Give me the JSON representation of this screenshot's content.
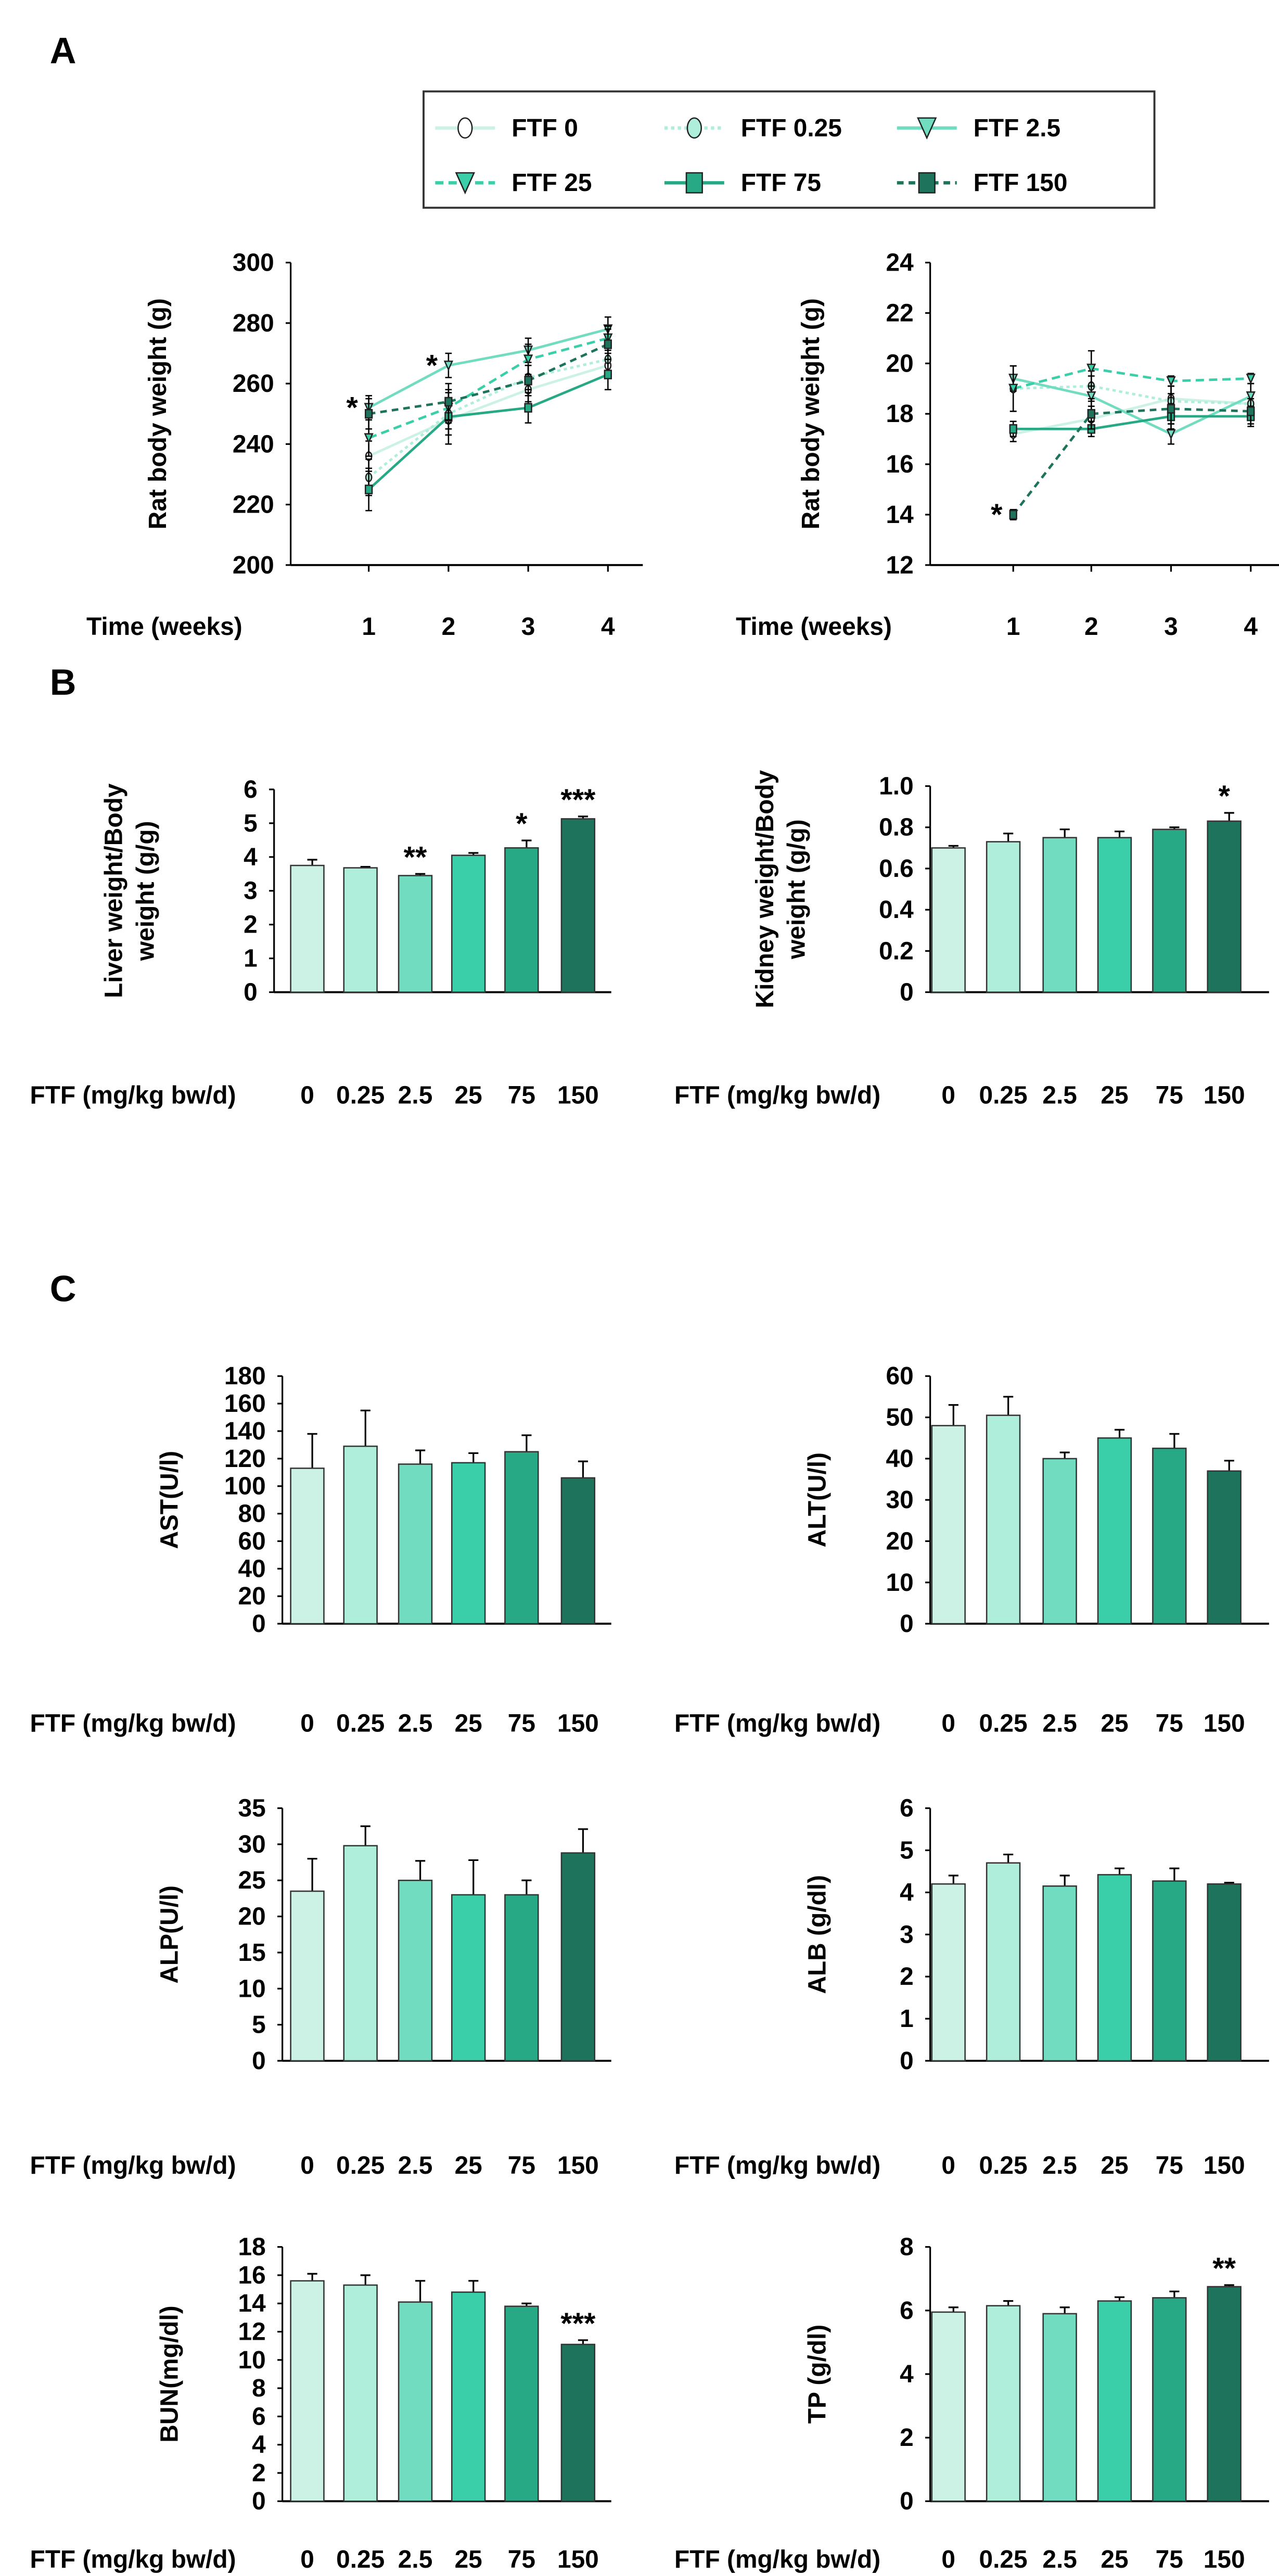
{
  "panels": {
    "a": "A",
    "b": "B",
    "c": "C"
  },
  "colors": [
    "#ccf2e6",
    "#aeeedb",
    "#72dcc0",
    "#3acfa8",
    "#28a986",
    "#1e735c"
  ],
  "legend": [
    {
      "label": "FTF 0",
      "marker": "circle-open",
      "line": "solid"
    },
    {
      "label": "FTF 0.25",
      "marker": "circle",
      "line": "dotted"
    },
    {
      "label": "FTF 2.5",
      "marker": "triangle-down",
      "line": "solid"
    },
    {
      "label": "FTF 25",
      "marker": "triangle-down",
      "line": "dashed"
    },
    {
      "label": "FTF 75",
      "marker": "square",
      "line": "solid"
    },
    {
      "label": "FTF 150",
      "marker": "square",
      "line": "dashed"
    }
  ],
  "chart_data": [
    {
      "type": "line",
      "panel": "A",
      "ylabel": "Rat body weight (g)",
      "xlabel": "Time (weeks)",
      "x": [
        "1",
        "2",
        "3",
        "4"
      ],
      "ylim": [
        200,
        300
      ],
      "yticks": [
        200,
        220,
        240,
        260,
        280,
        300
      ],
      "series": [
        {
          "name": "FTF 0",
          "values": [
            236,
            248,
            258,
            266
          ],
          "err": [
            5,
            5,
            4,
            4
          ]
        },
        {
          "name": "FTF 0.25",
          "values": [
            229,
            250,
            262,
            268
          ],
          "err": [
            6,
            5,
            4,
            4
          ]
        },
        {
          "name": "FTF 2.5",
          "values": [
            252,
            266,
            271,
            278
          ],
          "err": [
            4,
            4,
            4,
            4
          ]
        },
        {
          "name": "FTF 25",
          "values": [
            242,
            252,
            268,
            275
          ],
          "err": [
            6,
            5,
            5,
            4
          ]
        },
        {
          "name": "FTF 75",
          "values": [
            225,
            249,
            252,
            263
          ],
          "err": [
            7,
            9,
            5,
            5
          ]
        },
        {
          "name": "FTF 150",
          "values": [
            250,
            254,
            261,
            273
          ],
          "err": [
            5,
            6,
            5,
            5
          ]
        }
      ],
      "annotations": [
        {
          "series": "FTF 2.5",
          "x": "1",
          "text": "*"
        },
        {
          "series": "FTF 2.5",
          "x": "2",
          "text": "*"
        }
      ]
    },
    {
      "type": "line",
      "panel": "A",
      "ylabel": "Rat body weight (g)",
      "xlabel": "Time (weeks)",
      "x": [
        "1",
        "2",
        "3",
        "4"
      ],
      "ylim": [
        12,
        24
      ],
      "yticks": [
        12,
        14,
        16,
        18,
        20,
        22,
        24
      ],
      "series": [
        {
          "name": "FTF 0",
          "values": [
            17.2,
            17.8,
            18.6,
            18.4
          ],
          "err": [
            0.3,
            0.5,
            0.5,
            0.4
          ]
        },
        {
          "name": "FTF 0.25",
          "values": [
            19.0,
            19.1,
            18.5,
            18.4
          ],
          "err": [
            0.9,
            0.6,
            0.6,
            0.4
          ]
        },
        {
          "name": "FTF 2.5",
          "values": [
            19.4,
            18.7,
            17.2,
            18.7
          ],
          "err": [
            0.5,
            0.8,
            0.4,
            0.5
          ]
        },
        {
          "name": "FTF 25",
          "values": [
            19.0,
            19.8,
            19.3,
            19.4
          ],
          "err": [
            0.9,
            0.7,
            0.2,
            0.2
          ]
        },
        {
          "name": "FTF 75",
          "values": [
            17.4,
            17.4,
            17.9,
            17.9
          ],
          "err": [
            0.3,
            0.3,
            0.5,
            0.4
          ]
        },
        {
          "name": "FTF 150",
          "values": [
            14.0,
            18.0,
            18.2,
            18.1
          ],
          "err": [
            0.2,
            0.6,
            0.6,
            0.5
          ]
        }
      ],
      "annotations": [
        {
          "series": "FTF 150",
          "x": "1",
          "text": "*"
        }
      ]
    },
    {
      "type": "bar",
      "panel": "B",
      "ylabel": [
        "Liver weight/Body",
        "weight (g/g)"
      ],
      "xlabel": "FTF (mg/kg bw/d)",
      "categories": [
        "0",
        "0.25",
        "2.5",
        "25",
        "75",
        "150"
      ],
      "ylim": [
        0,
        6
      ],
      "yticks": [
        "0",
        "1",
        "2",
        "3",
        "4",
        "5",
        "6"
      ],
      "values": [
        3.75,
        3.68,
        3.45,
        4.05,
        4.27,
        5.13
      ],
      "err": [
        0.17,
        0.03,
        0.05,
        0.07,
        0.22,
        0.07
      ],
      "sig": [
        "",
        "",
        "**",
        "",
        "*",
        "***"
      ]
    },
    {
      "type": "bar",
      "panel": "B",
      "ylabel": [
        "Kidney weight/Body",
        "weight (g/g)"
      ],
      "xlabel": "FTF (mg/kg bw/d)",
      "categories": [
        "0",
        "0.25",
        "2.5",
        "25",
        "75",
        "150"
      ],
      "ylim": [
        0,
        1
      ],
      "yticks": [
        "0",
        "0.2",
        "0.4",
        "0.6",
        "0.8",
        "1.0"
      ],
      "values": [
        0.7,
        0.73,
        0.75,
        0.75,
        0.79,
        0.83
      ],
      "err": [
        0.01,
        0.04,
        0.04,
        0.03,
        0.01,
        0.04
      ],
      "sig": [
        "",
        "",
        "",
        "",
        "",
        "*"
      ]
    },
    {
      "type": "bar",
      "panel": "C",
      "ylabel": [
        "AST(U/l)"
      ],
      "xlabel": "FTF (mg/kg bw/d)",
      "categories": [
        "0",
        "0.25",
        "2.5",
        "25",
        "75",
        "150"
      ],
      "ylim": [
        0,
        180
      ],
      "yticks": [
        "0",
        "20",
        "40",
        "60",
        "80",
        "100",
        "120",
        "140",
        "160",
        "180"
      ],
      "values": [
        113,
        129,
        116,
        117,
        125,
        106
      ],
      "err": [
        25,
        26,
        10,
        7,
        12,
        12
      ],
      "sig": [
        "",
        "",
        "",
        "",
        "",
        ""
      ]
    },
    {
      "type": "bar",
      "panel": "C",
      "ylabel": [
        "ALT(U/l)"
      ],
      "xlabel": "FTF (mg/kg bw/d)",
      "categories": [
        "0",
        "0.25",
        "2.5",
        "25",
        "75",
        "150"
      ],
      "ylim": [
        0,
        60
      ],
      "yticks": [
        "0",
        "10",
        "20",
        "30",
        "40",
        "50",
        "60"
      ],
      "values": [
        48,
        50.5,
        40,
        45,
        42.5,
        37
      ],
      "err": [
        5,
        4.5,
        1.5,
        2,
        3.5,
        2.5
      ],
      "sig": [
        "",
        "",
        "",
        "",
        "",
        ""
      ]
    },
    {
      "type": "bar",
      "panel": "C",
      "ylabel": [
        "ALP(U/l)"
      ],
      "xlabel": "FTF (mg/kg bw/d)",
      "categories": [
        "0",
        "0.25",
        "2.5",
        "25",
        "75",
        "150"
      ],
      "ylim": [
        0,
        35
      ],
      "yticks": [
        "0",
        "5",
        "10",
        "15",
        "20",
        "25",
        "30",
        "35"
      ],
      "values": [
        23.5,
        29.8,
        25,
        23,
        23,
        28.8
      ],
      "err": [
        4.5,
        2.7,
        2.7,
        4.8,
        2,
        3.3
      ],
      "sig": [
        "",
        "",
        "",
        "",
        "",
        ""
      ]
    },
    {
      "type": "bar",
      "panel": "C",
      "ylabel": [
        "ALB (g/dl)"
      ],
      "xlabel": "FTF (mg/kg bw/d)",
      "categories": [
        "0",
        "0.25",
        "2.5",
        "25",
        "75",
        "150"
      ],
      "ylim": [
        0,
        6
      ],
      "yticks": [
        "0",
        "1",
        "2",
        "3",
        "4",
        "5",
        "6"
      ],
      "values": [
        4.2,
        4.7,
        4.15,
        4.42,
        4.27,
        4.2
      ],
      "err": [
        0.2,
        0.2,
        0.25,
        0.15,
        0.3,
        0.03
      ],
      "sig": [
        "",
        "",
        "",
        "",
        "",
        ""
      ]
    },
    {
      "type": "bar",
      "panel": "C",
      "ylabel": [
        "BUN(mg/dl)"
      ],
      "xlabel": "FTF (mg/kg bw/d)",
      "categories": [
        "0",
        "0.25",
        "2.5",
        "25",
        "75",
        "150"
      ],
      "ylim": [
        0,
        18
      ],
      "yticks": [
        "0",
        "2",
        "4",
        "6",
        "8",
        "10",
        "12",
        "14",
        "16",
        "18"
      ],
      "values": [
        15.6,
        15.3,
        14.1,
        14.8,
        13.8,
        11.1
      ],
      "err": [
        0.5,
        0.7,
        1.5,
        0.8,
        0.2,
        0.3
      ],
      "sig": [
        "",
        "",
        "",
        "",
        "",
        "***"
      ]
    },
    {
      "type": "bar",
      "panel": "C",
      "ylabel": [
        "TP (g/dl)"
      ],
      "xlabel": "FTF (mg/kg bw/d)",
      "categories": [
        "0",
        "0.25",
        "2.5",
        "25",
        "75",
        "150"
      ],
      "ylim": [
        0,
        8
      ],
      "yticks": [
        "0",
        "2",
        "4",
        "6",
        "8"
      ],
      "values": [
        5.95,
        6.15,
        5.9,
        6.3,
        6.4,
        6.75
      ],
      "err": [
        0.15,
        0.15,
        0.2,
        0.12,
        0.2,
        0.05
      ],
      "sig": [
        "",
        "",
        "",
        "",
        "",
        "**"
      ]
    }
  ]
}
